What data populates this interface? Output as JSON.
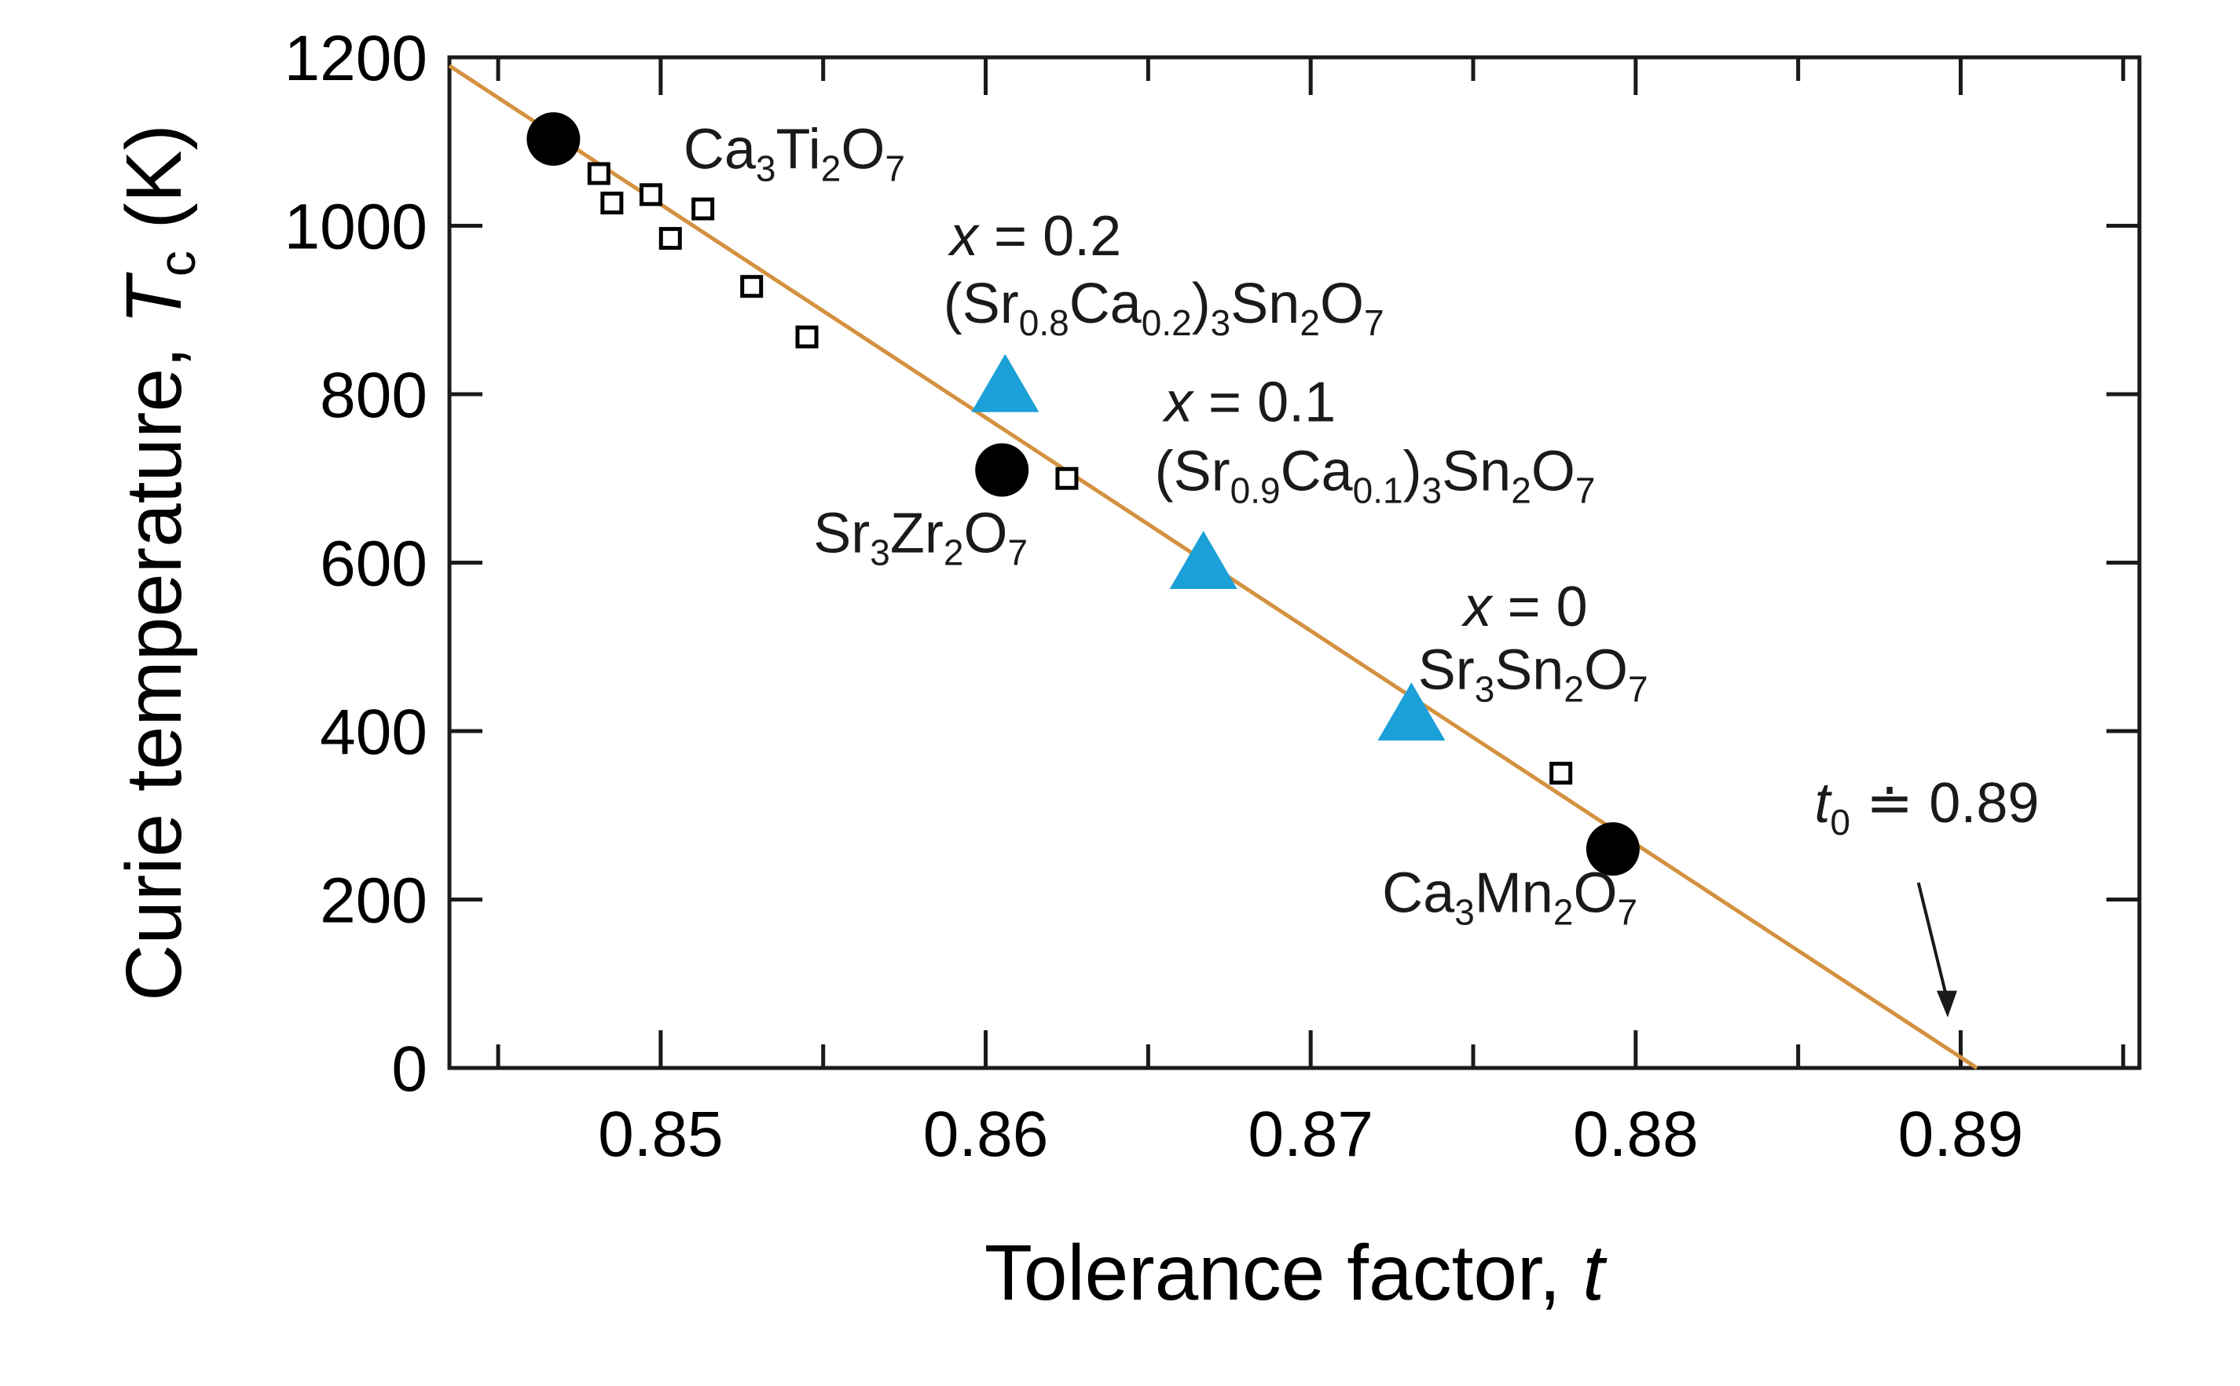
{
  "chart_data": {
    "type": "scatter",
    "title": "",
    "xlabel": {
      "main": "Tolerance factor, ",
      "var": "t"
    },
    "ylabel": {
      "main": "Curie temperature, ",
      "var": "T",
      "sub": "c",
      "unit": " (K)"
    },
    "xlim": [
      0.8435,
      0.8955
    ],
    "ylim": [
      0,
      1200
    ],
    "x_ticks": [
      0.85,
      0.86,
      0.87,
      0.88,
      0.89
    ],
    "x_tick_labels": [
      "0.85",
      "0.86",
      "0.87",
      "0.88",
      "0.89"
    ],
    "x_minor_ticks": [
      0.845,
      0.855,
      0.865,
      0.875,
      0.885,
      0.895
    ],
    "y_ticks": [
      0,
      200,
      400,
      600,
      800,
      1000,
      1200
    ],
    "y_tick_labels": [
      "0",
      "200",
      "400",
      "600",
      "800",
      "1000",
      "1200"
    ],
    "grid": false,
    "fit_line": {
      "color": "#d4913f",
      "points": [
        [
          0.8435,
          1190
        ],
        [
          0.8905,
          0
        ]
      ]
    },
    "series": [
      {
        "name": "Circles",
        "marker": "circle",
        "color": "#000000",
        "points": [
          [
            0.8467,
            1103
          ],
          [
            0.8605,
            710
          ],
          [
            0.8793,
            260
          ]
        ]
      },
      {
        "name": "Squares",
        "marker": "square",
        "color": "#000000",
        "points": [
          [
            0.8481,
            1062
          ],
          [
            0.8485,
            1027
          ],
          [
            0.8497,
            1037
          ],
          [
            0.8503,
            985
          ],
          [
            0.8513,
            1020
          ],
          [
            0.8528,
            928
          ],
          [
            0.8545,
            868
          ],
          [
            0.8625,
            700
          ],
          [
            0.8777,
            350
          ]
        ]
      },
      {
        "name": "Triangles",
        "marker": "triangle",
        "color": "#1ba0d8",
        "points": [
          [
            0.8606,
            805
          ],
          [
            0.8667,
            595
          ],
          [
            0.8731,
            415
          ]
        ]
      }
    ],
    "annotations": [
      {
        "id": "ca3ti2o7",
        "data_x": 0.8507,
        "data_y": 1068,
        "anchor": "start",
        "parts": [
          [
            "Ca",
            ""
          ],
          [
            "3",
            "sub"
          ],
          [
            "Ti",
            ""
          ],
          [
            "2",
            "sub"
          ],
          [
            "O",
            ""
          ],
          [
            "7",
            "sub"
          ]
        ]
      },
      {
        "id": "x02",
        "data_x": 0.8589,
        "data_y": 965,
        "anchor": "start",
        "parts": [
          [
            "x",
            "it"
          ],
          [
            " = 0.2",
            ""
          ]
        ]
      },
      {
        "id": "sr08ca02",
        "data_x": 0.8587,
        "data_y": 885,
        "anchor": "start",
        "parts": [
          [
            "(Sr",
            ""
          ],
          [
            "0.8",
            "sub"
          ],
          [
            "Ca",
            ""
          ],
          [
            "0.2",
            "sub"
          ],
          [
            ")",
            ""
          ],
          [
            "3",
            "sub"
          ],
          [
            "Sn",
            ""
          ],
          [
            "2",
            "sub"
          ],
          [
            "O",
            ""
          ],
          [
            "7",
            "sub"
          ]
        ]
      },
      {
        "id": "x01",
        "data_x": 0.8655,
        "data_y": 768,
        "anchor": "start",
        "parts": [
          [
            "x",
            "it"
          ],
          [
            " = 0.1",
            ""
          ]
        ]
      },
      {
        "id": "sr09ca01",
        "data_x": 0.8652,
        "data_y": 686,
        "anchor": "start",
        "parts": [
          [
            "(Sr",
            ""
          ],
          [
            "0.9",
            "sub"
          ],
          [
            "Ca",
            ""
          ],
          [
            "0.1",
            "sub"
          ],
          [
            ")",
            ""
          ],
          [
            "3",
            "sub"
          ],
          [
            "Sn",
            ""
          ],
          [
            "2",
            "sub"
          ],
          [
            "O",
            ""
          ],
          [
            "7",
            "sub"
          ]
        ]
      },
      {
        "id": "sr3zr2o7",
        "data_x": 0.8547,
        "data_y": 612,
        "anchor": "start",
        "parts": [
          [
            "Sr",
            ""
          ],
          [
            "3",
            "sub"
          ],
          [
            "Zr",
            ""
          ],
          [
            "2",
            "sub"
          ],
          [
            "O",
            ""
          ],
          [
            "7",
            "sub"
          ]
        ]
      },
      {
        "id": "x0",
        "data_x": 0.8747,
        "data_y": 525,
        "anchor": "start",
        "parts": [
          [
            "x",
            "it"
          ],
          [
            " = 0",
            ""
          ]
        ]
      },
      {
        "id": "sr3sn2o7",
        "data_x": 0.8733,
        "data_y": 450,
        "anchor": "start",
        "parts": [
          [
            "Sr",
            ""
          ],
          [
            "3",
            "sub"
          ],
          [
            "Sn",
            ""
          ],
          [
            "2",
            "sub"
          ],
          [
            "O",
            ""
          ],
          [
            "7",
            "sub"
          ]
        ]
      },
      {
        "id": "ca3mn2o7",
        "data_x": 0.8722,
        "data_y": 185,
        "anchor": "start",
        "parts": [
          [
            "Ca",
            ""
          ],
          [
            "3",
            "sub"
          ],
          [
            "Mn",
            ""
          ],
          [
            "2",
            "sub"
          ],
          [
            "O",
            ""
          ],
          [
            "7",
            "sub"
          ]
        ]
      },
      {
        "id": "t0-label",
        "data_x": 0.8855,
        "data_y": 292,
        "anchor": "start",
        "parts": [
          [
            "t",
            "it"
          ],
          [
            "0",
            "sub"
          ],
          [
            " ≐ 0.89",
            ""
          ]
        ]
      }
    ],
    "arrow": {
      "from": [
        0.8887,
        220
      ],
      "to": [
        0.8896,
        60
      ]
    }
  }
}
